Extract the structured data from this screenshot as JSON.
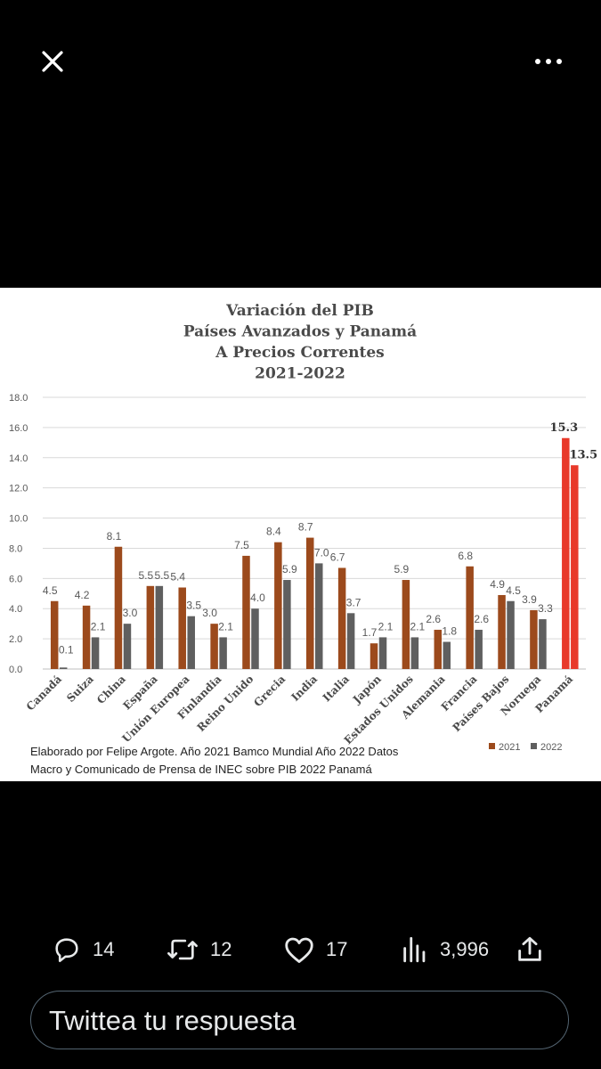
{
  "topbar": {
    "close_icon": "close-icon",
    "more_icon": "more-horizontal-icon"
  },
  "chart_data": {
    "type": "bar",
    "title_lines": [
      "Variación del PIB",
      "Países Avanzados y Panamá",
      "A Precios Correntes",
      "2021-2022"
    ],
    "categories": [
      "Canadá",
      "Suiza",
      "China",
      "España",
      "Unión Europea",
      "Finlandia",
      "Reino Unido",
      "Grecia",
      "India",
      "Italia",
      "Japón",
      "Estados Unidos",
      "Alemania",
      "Francia",
      "Países Bajos",
      "Noruega",
      "Panamá"
    ],
    "series": [
      {
        "name": "2021",
        "values": [
          4.5,
          4.2,
          8.1,
          5.5,
          5.4,
          3.0,
          7.5,
          8.4,
          8.7,
          6.7,
          1.7,
          5.9,
          2.6,
          6.8,
          4.9,
          3.9,
          15.3
        ]
      },
      {
        "name": "2022",
        "values": [
          0.1,
          2.1,
          3.0,
          5.5,
          3.5,
          2.1,
          4.0,
          5.9,
          7.0,
          3.7,
          2.1,
          2.1,
          1.8,
          2.6,
          4.5,
          3.3,
          13.5
        ]
      }
    ],
    "value_labels_2021": [
      "4.5",
      "4.2",
      "8.1",
      "5.5",
      "5.4",
      "3.0",
      "7.5",
      "8.4",
      "8.7",
      "6.7",
      "1.7",
      "5.9",
      "2.6",
      "6.8",
      "4.9",
      "3.9",
      "15.3"
    ],
    "value_labels_2022": [
      "0.1",
      "2.1",
      "3.0",
      "5.5",
      "3.5",
      "2.1",
      "4.0",
      "5.9",
      "7.0",
      "3.7",
      "2.1",
      "2.1",
      "1.8",
      "2.6",
      "4.5",
      "3.3",
      "13.5"
    ],
    "ylim": [
      0,
      18
    ],
    "yticks": [
      "0.0",
      "2.0",
      "4.0",
      "6.0",
      "8.0",
      "10.0",
      "12.0",
      "14.0",
      "16.0",
      "18.0"
    ],
    "grid": true,
    "legend_placement": "bottom-right",
    "colors": {
      "2021": "#9c4a1c",
      "2022": "#5f5f5f",
      "highlight": "#e8392a"
    },
    "highlight_category": "Panamá",
    "source_lines": [
      "Elaborado por Felipe Argote. Año 2021 Bamco Mundial Año 2022 Datos",
      "Macro y Comunicado de Prensa de INEC sobre PIB 2022 Panamá"
    ]
  },
  "actions": {
    "reply": {
      "icon": "reply-icon",
      "count": "14"
    },
    "retweet": {
      "icon": "retweet-icon",
      "count": "12"
    },
    "like": {
      "icon": "heart-icon",
      "count": "17"
    },
    "views": {
      "icon": "views-icon",
      "count": "3,996"
    },
    "share": {
      "icon": "share-icon"
    }
  },
  "reply_box": {
    "placeholder": "Twittea tu respuesta"
  }
}
